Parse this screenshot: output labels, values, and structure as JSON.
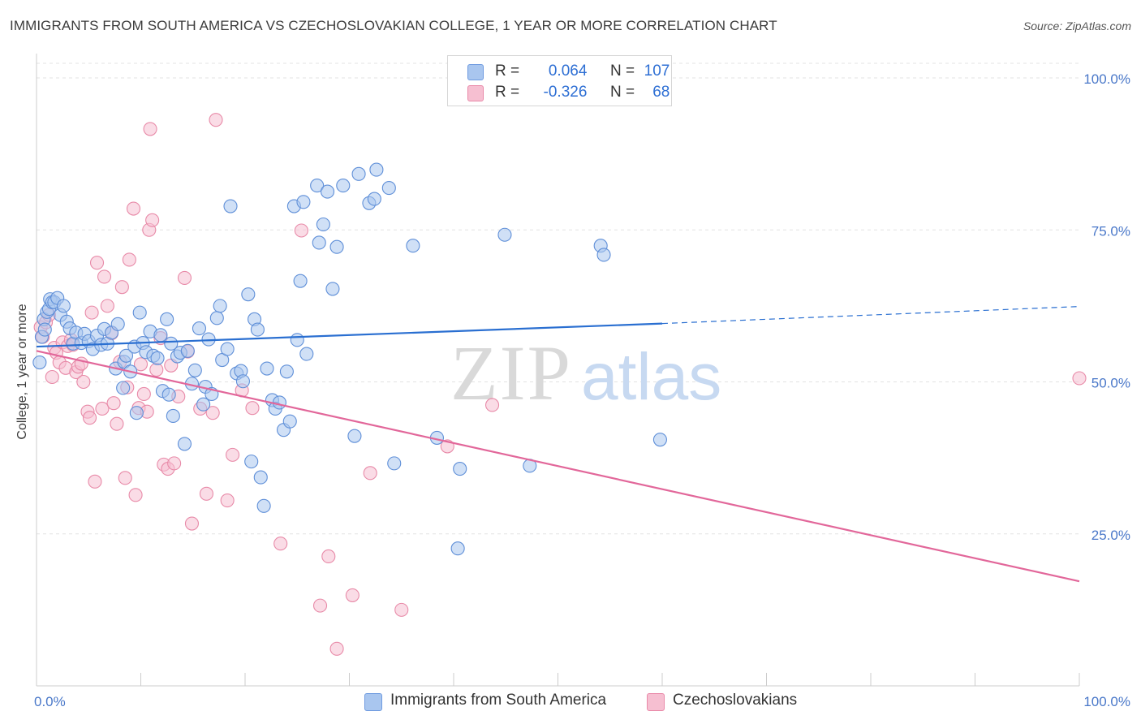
{
  "title": "IMMIGRANTS FROM SOUTH AMERICA VS CZECHOSLOVAKIAN COLLEGE, 1 YEAR OR MORE CORRELATION CHART",
  "source": "Source: ZipAtlas.com",
  "watermark": {
    "zip": "ZIP",
    "atlas": "atlas"
  },
  "legend": {
    "r_label": "R =",
    "n_label": "N =",
    "rows": [
      {
        "r": "0.064",
        "n": "107",
        "color": "#a9c6ef",
        "border": "#6f9be0"
      },
      {
        "r": "-0.326",
        "n": "68",
        "color": "#f6bfd1",
        "border": "#e98aa9"
      }
    ]
  },
  "colors": {
    "blue_fill": "#a9c6ef",
    "blue_stroke": "#5f8fd8",
    "blue_line": "#2a6fd1",
    "pink_fill": "#f6bfd1",
    "pink_stroke": "#e88aa8",
    "pink_line": "#e2679a"
  },
  "chart_data": {
    "type": "scatter",
    "title": "IMMIGRANTS FROM SOUTH AMERICA VS CZECHOSLOVAKIAN COLLEGE, 1 YEAR OR MORE CORRELATION CHART",
    "xlabel": "",
    "ylabel": "College, 1 year or more",
    "xlim": [
      0,
      100
    ],
    "ylim": [
      0,
      100
    ],
    "x_ticks": [
      "0.0%",
      "100.0%"
    ],
    "y_ticks": [
      "25.0%",
      "50.0%",
      "75.0%",
      "100.0%"
    ],
    "y_tick_values": [
      25,
      50,
      75,
      100
    ],
    "grid": true,
    "legend_position": "top-center",
    "series": [
      {
        "name": "Immigrants from South America",
        "color": "#a9c6ef",
        "trend": {
          "x": [
            0,
            60
          ],
          "y": [
            55.8,
            59.6
          ],
          "dashed_to": [
            100,
            62.4
          ]
        },
        "points": [
          [
            0.3,
            53.2
          ],
          [
            0.5,
            57.4
          ],
          [
            0.7,
            60.3
          ],
          [
            0.8,
            58.6
          ],
          [
            1.0,
            61.5
          ],
          [
            1.2,
            62.0
          ],
          [
            1.3,
            63.6
          ],
          [
            1.5,
            63.1
          ],
          [
            1.7,
            63.1
          ],
          [
            2.0,
            63.8
          ],
          [
            2.3,
            61.0
          ],
          [
            2.6,
            62.5
          ],
          [
            2.9,
            59.9
          ],
          [
            3.2,
            58.8
          ],
          [
            3.5,
            56.3
          ],
          [
            3.8,
            58.1
          ],
          [
            4.3,
            56.4
          ],
          [
            4.6,
            57.9
          ],
          [
            5.0,
            56.7
          ],
          [
            5.4,
            55.4
          ],
          [
            5.8,
            57.6
          ],
          [
            6.2,
            56.1
          ],
          [
            6.5,
            58.7
          ],
          [
            6.8,
            56.3
          ],
          [
            7.2,
            58.1
          ],
          [
            7.6,
            52.2
          ],
          [
            7.8,
            59.5
          ],
          [
            8.3,
            49.0
          ],
          [
            8.4,
            53.3
          ],
          [
            8.6,
            54.3
          ],
          [
            9.0,
            51.7
          ],
          [
            9.4,
            55.8
          ],
          [
            9.6,
            44.9
          ],
          [
            9.9,
            61.4
          ],
          [
            10.2,
            56.4
          ],
          [
            10.5,
            54.9
          ],
          [
            10.9,
            58.3
          ],
          [
            11.2,
            54.3
          ],
          [
            11.6,
            53.9
          ],
          [
            11.9,
            57.7
          ],
          [
            12.1,
            48.5
          ],
          [
            12.5,
            60.3
          ],
          [
            12.7,
            47.9
          ],
          [
            12.9,
            56.3
          ],
          [
            13.1,
            44.4
          ],
          [
            13.5,
            54.2
          ],
          [
            13.8,
            54.8
          ],
          [
            14.2,
            39.8
          ],
          [
            14.5,
            55.1
          ],
          [
            14.9,
            49.7
          ],
          [
            15.2,
            51.9
          ],
          [
            15.6,
            58.8
          ],
          [
            16.0,
            46.3
          ],
          [
            16.2,
            49.2
          ],
          [
            16.5,
            57.0
          ],
          [
            16.8,
            48.0
          ],
          [
            17.3,
            60.5
          ],
          [
            17.6,
            62.5
          ],
          [
            17.8,
            53.6
          ],
          [
            18.3,
            55.4
          ],
          [
            18.6,
            78.9
          ],
          [
            19.2,
            51.4
          ],
          [
            19.6,
            51.8
          ],
          [
            19.8,
            50.1
          ],
          [
            20.3,
            64.4
          ],
          [
            20.6,
            36.9
          ],
          [
            20.9,
            60.3
          ],
          [
            21.2,
            58.6
          ],
          [
            21.5,
            34.3
          ],
          [
            21.8,
            29.6
          ],
          [
            22.1,
            52.2
          ],
          [
            22.6,
            47.0
          ],
          [
            22.9,
            45.6
          ],
          [
            23.3,
            46.6
          ],
          [
            23.7,
            42.1
          ],
          [
            24.0,
            51.7
          ],
          [
            24.3,
            43.5
          ],
          [
            24.7,
            78.9
          ],
          [
            25.0,
            56.9
          ],
          [
            25.3,
            66.6
          ],
          [
            25.6,
            79.6
          ],
          [
            25.9,
            54.6
          ],
          [
            26.9,
            82.3
          ],
          [
            27.1,
            72.9
          ],
          [
            27.5,
            75.9
          ],
          [
            27.9,
            81.3
          ],
          [
            28.4,
            65.3
          ],
          [
            28.8,
            72.2
          ],
          [
            29.4,
            82.3
          ],
          [
            30.5,
            41.1
          ],
          [
            30.9,
            84.2
          ],
          [
            31.9,
            79.4
          ],
          [
            32.4,
            80.1
          ],
          [
            32.6,
            84.9
          ],
          [
            33.8,
            81.9
          ],
          [
            34.3,
            36.6
          ],
          [
            36.1,
            72.4
          ],
          [
            38.4,
            40.8
          ],
          [
            40.4,
            22.6
          ],
          [
            40.6,
            35.7
          ],
          [
            44.9,
            74.2
          ],
          [
            47.3,
            36.2
          ],
          [
            54.1,
            72.4
          ],
          [
            54.4,
            70.9
          ],
          [
            59.8,
            40.5
          ]
        ]
      },
      {
        "name": "Czechoslovakians",
        "color": "#f6bfd1",
        "trend": {
          "x": [
            0,
            100
          ],
          "y": [
            55.1,
            17.2
          ]
        },
        "points": [
          [
            0.4,
            59.0
          ],
          [
            0.6,
            57.4
          ],
          [
            0.9,
            59.8
          ],
          [
            1.2,
            61.0
          ],
          [
            1.5,
            50.8
          ],
          [
            1.7,
            55.6
          ],
          [
            1.9,
            54.8
          ],
          [
            2.2,
            53.2
          ],
          [
            2.5,
            56.5
          ],
          [
            2.8,
            52.3
          ],
          [
            3.0,
            55.9
          ],
          [
            3.3,
            56.9
          ],
          [
            3.5,
            56.1
          ],
          [
            3.8,
            51.6
          ],
          [
            4.0,
            52.5
          ],
          [
            4.3,
            53.0
          ],
          [
            4.5,
            50.0
          ],
          [
            4.9,
            45.1
          ],
          [
            5.1,
            44.1
          ],
          [
            5.3,
            61.4
          ],
          [
            5.6,
            33.6
          ],
          [
            5.8,
            69.6
          ],
          [
            6.3,
            45.6
          ],
          [
            6.5,
            67.3
          ],
          [
            6.8,
            62.5
          ],
          [
            7.2,
            58.0
          ],
          [
            7.4,
            46.5
          ],
          [
            7.7,
            43.1
          ],
          [
            8.0,
            53.3
          ],
          [
            8.2,
            65.6
          ],
          [
            8.5,
            34.2
          ],
          [
            8.7,
            49.1
          ],
          [
            8.9,
            70.1
          ],
          [
            9.3,
            78.5
          ],
          [
            9.5,
            31.4
          ],
          [
            9.8,
            45.7
          ],
          [
            10.0,
            52.9
          ],
          [
            10.3,
            48.0
          ],
          [
            10.6,
            45.1
          ],
          [
            10.9,
            91.6
          ],
          [
            10.8,
            75.0
          ],
          [
            11.1,
            76.6
          ],
          [
            11.5,
            52.0
          ],
          [
            11.9,
            57.2
          ],
          [
            12.2,
            36.4
          ],
          [
            12.6,
            35.7
          ],
          [
            12.9,
            52.7
          ],
          [
            13.2,
            36.6
          ],
          [
            13.6,
            47.6
          ],
          [
            14.2,
            67.1
          ],
          [
            14.5,
            55.0
          ],
          [
            14.9,
            26.7
          ],
          [
            15.7,
            45.6
          ],
          [
            16.3,
            31.6
          ],
          [
            16.9,
            44.9
          ],
          [
            17.2,
            93.1
          ],
          [
            18.3,
            30.5
          ],
          [
            18.8,
            38.0
          ],
          [
            19.7,
            48.6
          ],
          [
            20.7,
            45.7
          ],
          [
            23.4,
            23.4
          ],
          [
            25.4,
            74.9
          ],
          [
            27.2,
            13.2
          ],
          [
            28.0,
            21.3
          ],
          [
            28.8,
            6.1
          ],
          [
            30.3,
            14.9
          ],
          [
            32.0,
            35.0
          ],
          [
            35.0,
            12.5
          ],
          [
            39.4,
            39.4
          ],
          [
            43.7,
            46.2
          ],
          [
            100.0,
            50.6
          ]
        ]
      }
    ]
  },
  "bottom_legend": [
    {
      "label": "Immigrants from South America"
    },
    {
      "label": "Czechoslovakians"
    }
  ]
}
